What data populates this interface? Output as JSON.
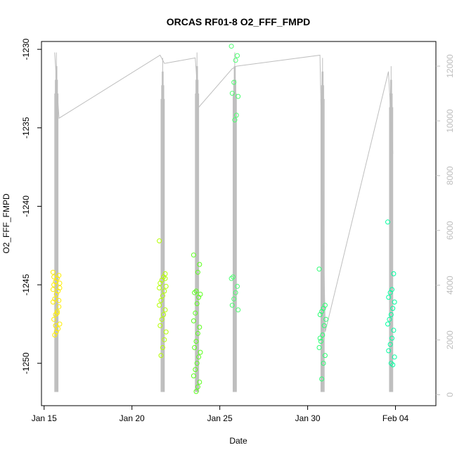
{
  "chart_data": {
    "type": "scatter",
    "title": "ORCAS RF01-8 O2_FFF_FMPD",
    "xlabel": "Date",
    "ylabel": "O2_FFF_FMPD",
    "x_ticks": [
      "Jan 15",
      "Jan 20",
      "Jan 25",
      "Jan 30",
      "Feb 04"
    ],
    "x_tick_days": [
      15,
      20,
      25,
      30,
      35
    ],
    "xlim_days": [
      14.85,
      37.3
    ],
    "ylim": [
      -1252.7,
      -1229.5
    ],
    "y_ticks": [
      -1250,
      -1245,
      -1240,
      -1235,
      -1230
    ],
    "y2lim": [
      -400,
      12900
    ],
    "y2_ticks": [
      0,
      2000,
      4000,
      6000,
      8000,
      10000,
      12000
    ],
    "colors": {
      "altitude_line": "#bebebe",
      "flight_1": "#ffee00",
      "flight_2": "#b4ff00",
      "flight_3": "#5bff1c",
      "flight_4": "#4cff70",
      "flight_5": "#2cff74",
      "flight_6": "#00ffa0"
    },
    "flights": [
      {
        "day": 15.7,
        "color_key": "flight_1",
        "alt_min": 100,
        "alt_max": 12500,
        "points": [
          -1244.2,
          -1244.4,
          -1244.6,
          -1244.8,
          -1245.0,
          -1245.2,
          -1245.4,
          -1245.6,
          -1245.9,
          -1246.1,
          -1246.4,
          -1246.7,
          -1246.9,
          -1247.2,
          -1247.5,
          -1247.8,
          -1248.0,
          -1248.2,
          -1245.3,
          -1246.0,
          -1246.8,
          -1247.6,
          -1244.5,
          -1244.9
        ]
      },
      {
        "day": 21.75,
        "color_key": "flight_2",
        "alt_min": 100,
        "alt_max": 12300,
        "points": [
          -1242.2,
          -1244.3,
          -1244.5,
          -1244.7,
          -1244.9,
          -1245.1,
          -1245.4,
          -1245.7,
          -1246.0,
          -1246.3,
          -1246.6,
          -1246.9,
          -1247.2,
          -1247.6,
          -1248.0,
          -1248.5,
          -1249.0,
          -1249.5,
          -1245.2,
          -1244.6
        ]
      },
      {
        "day": 23.7,
        "color_key": "flight_3",
        "alt_min": 100,
        "alt_max": 12500,
        "points": [
          -1243.1,
          -1243.7,
          -1244.2,
          -1245.4,
          -1245.5,
          -1245.6,
          -1245.8,
          -1246.2,
          -1246.8,
          -1247.3,
          -1247.7,
          -1248.1,
          -1248.6,
          -1249.0,
          -1249.3,
          -1249.6,
          -1250.0,
          -1250.4,
          -1250.8,
          -1251.2,
          -1251.5,
          -1251.8
        ]
      },
      {
        "day": 25.85,
        "color_key": "flight_4",
        "alt_min": 100,
        "alt_max": 12500,
        "points": [
          -1229.8,
          -1230.4,
          -1230.7,
          -1232.1,
          -1232.8,
          -1233.0,
          -1234.2,
          -1234.5,
          -1244.5,
          -1244.6,
          -1245.1,
          -1245.5,
          -1245.9,
          -1246.3,
          -1246.6
        ]
      },
      {
        "day": 30.85,
        "color_key": "flight_5",
        "alt_min": 100,
        "alt_max": 12300,
        "points": [
          -1244.0,
          -1246.3,
          -1246.5,
          -1246.7,
          -1246.9,
          -1247.2,
          -1247.6,
          -1248.2,
          -1248.6,
          -1249.0,
          -1249.5,
          -1250.0,
          -1251.0,
          -1248.4
        ]
      },
      {
        "day": 34.75,
        "color_key": "flight_6",
        "alt_min": 100,
        "alt_max": 12000,
        "points": [
          -1241.0,
          -1244.3,
          -1245.3,
          -1245.5,
          -1245.8,
          -1246.1,
          -1246.5,
          -1246.9,
          -1247.2,
          -1247.5,
          -1247.9,
          -1248.4,
          -1248.8,
          -1249.2,
          -1249.6,
          -1250.1,
          -1250.0
        ]
      }
    ],
    "altitude_ferry": [
      [
        15.6,
        12500
      ],
      [
        15.85,
        10100
      ],
      [
        21.6,
        12400
      ],
      [
        21.85,
        12100
      ],
      [
        23.6,
        12300
      ],
      [
        23.8,
        10500
      ],
      [
        25.7,
        11900
      ],
      [
        25.95,
        12000
      ],
      [
        30.7,
        12400
      ],
      [
        31.0,
        2300
      ],
      [
        34.6,
        11800
      ],
      [
        34.85,
        8800
      ]
    ],
    "grid": false,
    "legend": "none"
  }
}
